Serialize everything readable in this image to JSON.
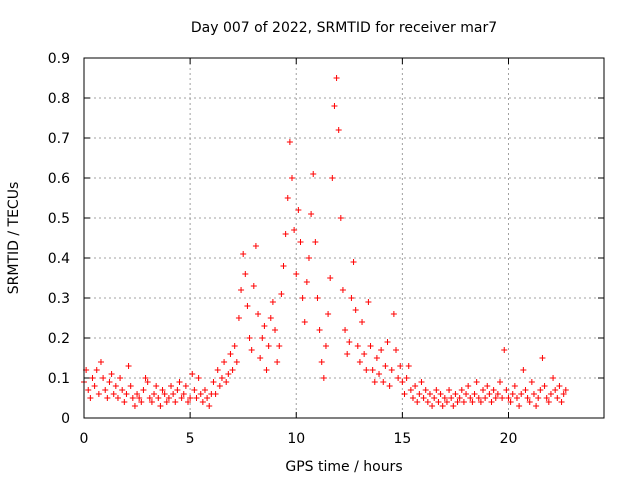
{
  "chart_data": {
    "type": "scatter",
    "title": "Day 007 of 2022, SRMTID for receiver mar7",
    "xlabel": "GPS time / hours",
    "ylabel": "SRMTID / TECUs",
    "xlim": [
      0,
      24.5
    ],
    "ylim": [
      0,
      0.9
    ],
    "xticks": [
      "0",
      "5",
      "10",
      "15",
      "20"
    ],
    "xtick_values": [
      0,
      5,
      10,
      15,
      20
    ],
    "yticks": [
      "0",
      "0.1",
      "0.2",
      "0.3",
      "0.4",
      "0.5",
      "0.6",
      "0.7",
      "0.8",
      "0.9"
    ],
    "ytick_values": [
      0,
      0.1,
      0.2,
      0.3,
      0.4,
      0.5,
      0.6,
      0.7,
      0.8,
      0.9
    ],
    "grid": true,
    "marker": "+",
    "color": "#ff0000",
    "series": [
      {
        "name": "SRMTID",
        "points": [
          [
            0.0,
            0.09
          ],
          [
            0.1,
            0.12
          ],
          [
            0.2,
            0.07
          ],
          [
            0.3,
            0.05
          ],
          [
            0.4,
            0.1
          ],
          [
            0.5,
            0.08
          ],
          [
            0.6,
            0.12
          ],
          [
            0.7,
            0.06
          ],
          [
            0.8,
            0.14
          ],
          [
            0.9,
            0.1
          ],
          [
            1.0,
            0.07
          ],
          [
            1.1,
            0.05
          ],
          [
            1.2,
            0.09
          ],
          [
            1.3,
            0.11
          ],
          [
            1.4,
            0.06
          ],
          [
            1.5,
            0.08
          ],
          [
            1.6,
            0.05
          ],
          [
            1.7,
            0.1
          ],
          [
            1.8,
            0.07
          ],
          [
            1.9,
            0.04
          ],
          [
            2.0,
            0.06
          ],
          [
            2.1,
            0.13
          ],
          [
            2.2,
            0.08
          ],
          [
            2.3,
            0.05
          ],
          [
            2.4,
            0.03
          ],
          [
            2.5,
            0.06
          ],
          [
            2.6,
            0.05
          ],
          [
            2.7,
            0.04
          ],
          [
            2.8,
            0.07
          ],
          [
            2.9,
            0.1
          ],
          [
            3.0,
            0.09
          ],
          [
            3.1,
            0.05
          ],
          [
            3.2,
            0.04
          ],
          [
            3.3,
            0.06
          ],
          [
            3.4,
            0.08
          ],
          [
            3.5,
            0.05
          ],
          [
            3.6,
            0.03
          ],
          [
            3.7,
            0.07
          ],
          [
            3.8,
            0.06
          ],
          [
            3.9,
            0.04
          ],
          [
            4.0,
            0.05
          ],
          [
            4.1,
            0.08
          ],
          [
            4.2,
            0.06
          ],
          [
            4.3,
            0.04
          ],
          [
            4.4,
            0.07
          ],
          [
            4.5,
            0.09
          ],
          [
            4.6,
            0.05
          ],
          [
            4.7,
            0.06
          ],
          [
            4.8,
            0.08
          ],
          [
            4.9,
            0.04
          ],
          [
            5.0,
            0.05
          ],
          [
            5.1,
            0.11
          ],
          [
            5.2,
            0.07
          ],
          [
            5.3,
            0.05
          ],
          [
            5.4,
            0.1
          ],
          [
            5.5,
            0.06
          ],
          [
            5.6,
            0.04
          ],
          [
            5.7,
            0.07
          ],
          [
            5.8,
            0.05
          ],
          [
            5.9,
            0.03
          ],
          [
            6.0,
            0.06
          ],
          [
            6.1,
            0.09
          ],
          [
            6.2,
            0.06
          ],
          [
            6.3,
            0.12
          ],
          [
            6.4,
            0.08
          ],
          [
            6.5,
            0.1
          ],
          [
            6.6,
            0.14
          ],
          [
            6.7,
            0.09
          ],
          [
            6.8,
            0.11
          ],
          [
            6.9,
            0.16
          ],
          [
            7.0,
            0.12
          ],
          [
            7.1,
            0.18
          ],
          [
            7.2,
            0.14
          ],
          [
            7.3,
            0.25
          ],
          [
            7.4,
            0.32
          ],
          [
            7.5,
            0.41
          ],
          [
            7.6,
            0.36
          ],
          [
            7.7,
            0.28
          ],
          [
            7.8,
            0.2
          ],
          [
            7.9,
            0.17
          ],
          [
            8.0,
            0.33
          ],
          [
            8.1,
            0.43
          ],
          [
            8.2,
            0.26
          ],
          [
            8.3,
            0.15
          ],
          [
            8.4,
            0.2
          ],
          [
            8.5,
            0.23
          ],
          [
            8.6,
            0.12
          ],
          [
            8.7,
            0.18
          ],
          [
            8.8,
            0.25
          ],
          [
            8.9,
            0.29
          ],
          [
            9.0,
            0.22
          ],
          [
            9.1,
            0.14
          ],
          [
            9.2,
            0.18
          ],
          [
            9.3,
            0.31
          ],
          [
            9.4,
            0.38
          ],
          [
            9.5,
            0.46
          ],
          [
            9.6,
            0.55
          ],
          [
            9.7,
            0.69
          ],
          [
            9.8,
            0.6
          ],
          [
            9.9,
            0.47
          ],
          [
            10.0,
            0.36
          ],
          [
            10.1,
            0.52
          ],
          [
            10.2,
            0.44
          ],
          [
            10.3,
            0.3
          ],
          [
            10.4,
            0.24
          ],
          [
            10.5,
            0.34
          ],
          [
            10.6,
            0.4
          ],
          [
            10.7,
            0.51
          ],
          [
            10.8,
            0.61
          ],
          [
            10.9,
            0.44
          ],
          [
            11.0,
            0.3
          ],
          [
            11.1,
            0.22
          ],
          [
            11.2,
            0.14
          ],
          [
            11.3,
            0.1
          ],
          [
            11.4,
            0.18
          ],
          [
            11.5,
            0.26
          ],
          [
            11.6,
            0.35
          ],
          [
            11.7,
            0.6
          ],
          [
            11.8,
            0.78
          ],
          [
            11.9,
            0.85
          ],
          [
            12.0,
            0.72
          ],
          [
            12.1,
            0.5
          ],
          [
            12.2,
            0.32
          ],
          [
            12.3,
            0.22
          ],
          [
            12.4,
            0.16
          ],
          [
            12.5,
            0.19
          ],
          [
            12.6,
            0.3
          ],
          [
            12.7,
            0.39
          ],
          [
            12.8,
            0.27
          ],
          [
            12.9,
            0.18
          ],
          [
            13.0,
            0.14
          ],
          [
            13.1,
            0.24
          ],
          [
            13.2,
            0.16
          ],
          [
            13.3,
            0.12
          ],
          [
            13.4,
            0.29
          ],
          [
            13.5,
            0.18
          ],
          [
            13.6,
            0.12
          ],
          [
            13.7,
            0.09
          ],
          [
            13.8,
            0.15
          ],
          [
            13.9,
            0.11
          ],
          [
            14.0,
            0.17
          ],
          [
            14.1,
            0.09
          ],
          [
            14.2,
            0.13
          ],
          [
            14.3,
            0.19
          ],
          [
            14.4,
            0.08
          ],
          [
            14.5,
            0.12
          ],
          [
            14.6,
            0.26
          ],
          [
            14.7,
            0.17
          ],
          [
            14.8,
            0.1
          ],
          [
            14.9,
            0.13
          ],
          [
            15.0,
            0.09
          ],
          [
            15.1,
            0.06
          ],
          [
            15.2,
            0.1
          ],
          [
            15.3,
            0.13
          ],
          [
            15.4,
            0.07
          ],
          [
            15.5,
            0.05
          ],
          [
            15.6,
            0.08
          ],
          [
            15.7,
            0.04
          ],
          [
            15.8,
            0.06
          ],
          [
            15.9,
            0.09
          ],
          [
            16.0,
            0.05
          ],
          [
            16.1,
            0.07
          ],
          [
            16.2,
            0.04
          ],
          [
            16.3,
            0.06
          ],
          [
            16.4,
            0.03
          ],
          [
            16.5,
            0.05
          ],
          [
            16.6,
            0.07
          ],
          [
            16.7,
            0.04
          ],
          [
            16.8,
            0.06
          ],
          [
            16.9,
            0.03
          ],
          [
            17.0,
            0.05
          ],
          [
            17.1,
            0.04
          ],
          [
            17.2,
            0.07
          ],
          [
            17.3,
            0.05
          ],
          [
            17.4,
            0.03
          ],
          [
            17.5,
            0.06
          ],
          [
            17.6,
            0.04
          ],
          [
            17.7,
            0.05
          ],
          [
            17.8,
            0.07
          ],
          [
            17.9,
            0.04
          ],
          [
            18.0,
            0.06
          ],
          [
            18.1,
            0.08
          ],
          [
            18.2,
            0.05
          ],
          [
            18.3,
            0.04
          ],
          [
            18.4,
            0.06
          ],
          [
            18.5,
            0.09
          ],
          [
            18.6,
            0.05
          ],
          [
            18.7,
            0.04
          ],
          [
            18.8,
            0.07
          ],
          [
            18.9,
            0.05
          ],
          [
            19.0,
            0.08
          ],
          [
            19.1,
            0.06
          ],
          [
            19.2,
            0.04
          ],
          [
            19.3,
            0.07
          ],
          [
            19.4,
            0.05
          ],
          [
            19.5,
            0.06
          ],
          [
            19.6,
            0.09
          ],
          [
            19.7,
            0.05
          ],
          [
            19.8,
            0.17
          ],
          [
            19.9,
            0.07
          ],
          [
            20.0,
            0.05
          ],
          [
            20.1,
            0.04
          ],
          [
            20.2,
            0.06
          ],
          [
            20.3,
            0.08
          ],
          [
            20.4,
            0.05
          ],
          [
            20.5,
            0.03
          ],
          [
            20.6,
            0.06
          ],
          [
            20.7,
            0.12
          ],
          [
            20.8,
            0.07
          ],
          [
            20.9,
            0.05
          ],
          [
            21.0,
            0.04
          ],
          [
            21.1,
            0.09
          ],
          [
            21.2,
            0.06
          ],
          [
            21.3,
            0.03
          ],
          [
            21.4,
            0.05
          ],
          [
            21.5,
            0.07
          ],
          [
            21.6,
            0.15
          ],
          [
            21.7,
            0.08
          ],
          [
            21.8,
            0.05
          ],
          [
            21.9,
            0.04
          ],
          [
            22.0,
            0.06
          ],
          [
            22.1,
            0.1
          ],
          [
            22.2,
            0.07
          ],
          [
            22.3,
            0.05
          ],
          [
            22.4,
            0.08
          ],
          [
            22.5,
            0.04
          ],
          [
            22.6,
            0.06
          ],
          [
            22.7,
            0.07
          ]
        ]
      }
    ]
  }
}
